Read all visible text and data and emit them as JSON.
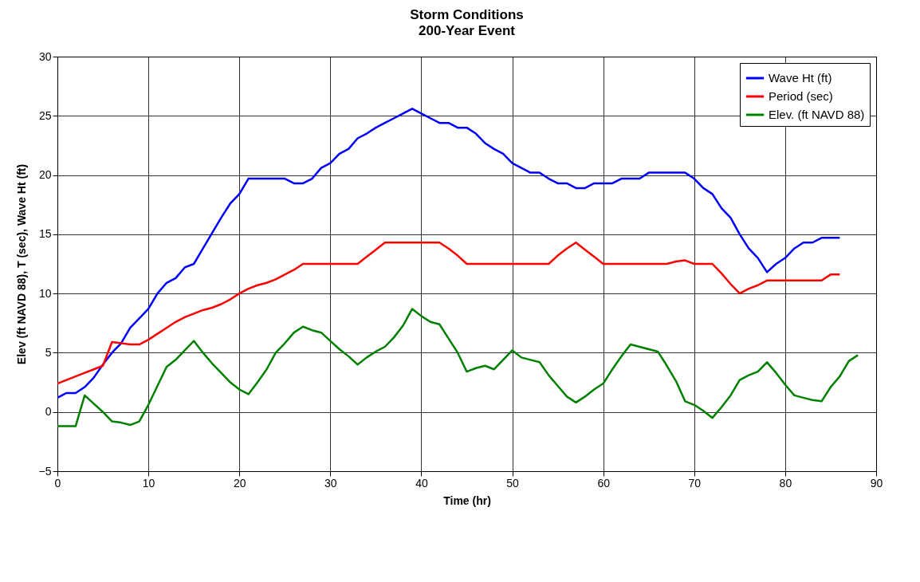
{
  "chart_data": {
    "type": "line",
    "title": "Storm Conditions",
    "subtitle": "200-Year Event",
    "xlabel": "Time (hr)",
    "ylabel": "Elev (ft NAVD 88), T (sec), Wave Ht (ft)",
    "x": [
      0,
      1,
      2,
      3,
      4,
      5,
      6,
      7,
      8,
      9,
      10,
      11,
      12,
      13,
      14,
      15,
      16,
      17,
      18,
      19,
      20,
      21,
      22,
      23,
      24,
      25,
      26,
      27,
      28,
      29,
      30,
      31,
      32,
      33,
      34,
      35,
      36,
      37,
      38,
      39,
      40,
      41,
      42,
      43,
      44,
      45,
      46,
      47,
      48,
      49,
      50,
      51,
      52,
      53,
      54,
      55,
      56,
      57,
      58,
      59,
      60,
      61,
      62,
      63,
      64,
      65,
      66,
      67,
      68,
      69,
      70,
      71,
      72,
      73,
      74,
      75,
      76,
      77,
      78,
      79,
      80,
      81,
      82,
      83,
      84,
      85,
      86,
      87,
      88
    ],
    "series": [
      {
        "name": "Wave Ht (ft)",
        "color": "#0000ff",
        "values": [
          1.2,
          1.6,
          1.6,
          2.1,
          2.9,
          4.0,
          5.0,
          5.8,
          7.1,
          7.9,
          8.7,
          10.0,
          10.9,
          11.3,
          12.2,
          12.5,
          13.8,
          15.1,
          16.4,
          17.6,
          18.4,
          19.7,
          19.7,
          19.7,
          19.7,
          19.7,
          19.3,
          19.3,
          19.7,
          20.6,
          21.0,
          21.8,
          22.2,
          23.1,
          23.5,
          24.0,
          24.4,
          24.8,
          25.2,
          25.6,
          25.2,
          24.8,
          24.4,
          24.4,
          24.0,
          24.0,
          23.5,
          22.7,
          22.2,
          21.8,
          21.0,
          20.6,
          20.2,
          20.2,
          19.7,
          19.3,
          19.3,
          18.9,
          18.9,
          19.3,
          19.3,
          19.3,
          19.7,
          19.7,
          19.7,
          20.2,
          20.2,
          20.2,
          20.2,
          20.2,
          19.7,
          18.9,
          18.4,
          17.2,
          16.4,
          15.0,
          13.8,
          13.0,
          11.8,
          12.5,
          13.0,
          13.8,
          14.3,
          14.3,
          14.7,
          14.7,
          14.7,
          null,
          null
        ]
      },
      {
        "name": "Period (sec)",
        "color": "#ff0000",
        "values": [
          2.4,
          2.7,
          3.0,
          3.3,
          3.6,
          3.9,
          5.9,
          5.8,
          5.7,
          5.7,
          6.1,
          6.6,
          7.1,
          7.6,
          8.0,
          8.3,
          8.6,
          8.8,
          9.1,
          9.5,
          10.0,
          10.4,
          10.7,
          10.9,
          11.2,
          11.6,
          12.0,
          12.5,
          12.5,
          12.5,
          12.5,
          12.5,
          12.5,
          12.5,
          13.1,
          13.7,
          14.3,
          14.3,
          14.3,
          14.3,
          14.3,
          14.3,
          14.3,
          13.8,
          13.2,
          12.5,
          12.5,
          12.5,
          12.5,
          12.5,
          12.5,
          12.5,
          12.5,
          12.5,
          12.5,
          13.2,
          13.8,
          14.3,
          13.7,
          13.1,
          12.5,
          12.5,
          12.5,
          12.5,
          12.5,
          12.5,
          12.5,
          12.5,
          12.7,
          12.8,
          12.5,
          12.5,
          12.5,
          11.7,
          10.8,
          10.0,
          10.4,
          10.7,
          11.1,
          11.1,
          11.1,
          11.1,
          11.1,
          11.1,
          11.1,
          11.6,
          11.6,
          null,
          null
        ]
      },
      {
        "name": "Elev. (ft NAVD 88)",
        "color": "#008000",
        "values": [
          -1.2,
          -1.2,
          -1.2,
          1.4,
          0.7,
          0.0,
          -0.8,
          -0.9,
          -1.1,
          -0.8,
          0.6,
          2.2,
          3.8,
          4.4,
          5.2,
          6.0,
          5.0,
          4.1,
          3.3,
          2.5,
          1.9,
          1.5,
          2.5,
          3.6,
          5.0,
          5.8,
          6.7,
          7.2,
          6.9,
          6.7,
          6.0,
          5.3,
          4.7,
          4.0,
          4.6,
          5.1,
          5.5,
          6.3,
          7.3,
          8.7,
          8.1,
          7.6,
          7.4,
          6.2,
          5.0,
          3.4,
          3.7,
          3.9,
          3.6,
          4.4,
          5.2,
          4.6,
          4.4,
          4.2,
          3.1,
          2.2,
          1.3,
          0.8,
          1.3,
          1.9,
          2.4,
          3.6,
          4.7,
          5.7,
          5.5,
          5.3,
          5.1,
          3.9,
          2.6,
          0.9,
          0.6,
          0.1,
          -0.5,
          0.4,
          1.4,
          2.7,
          3.1,
          3.4,
          4.2,
          3.3,
          2.3,
          1.4,
          1.2,
          1.0,
          0.9,
          2.1,
          3.0,
          4.3,
          4.8
        ]
      }
    ],
    "xlim": [
      0,
      90
    ],
    "xticks": [
      0,
      10,
      20,
      30,
      40,
      50,
      60,
      70,
      80,
      90
    ],
    "ylim": [
      -5,
      30
    ],
    "yticks": [
      -5,
      0,
      5,
      10,
      15,
      20,
      25,
      30
    ],
    "grid": true,
    "legend": "top right",
    "line_style": "solid"
  }
}
